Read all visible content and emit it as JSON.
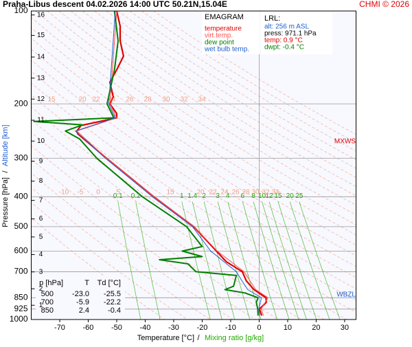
{
  "chart_data": {
    "type": "emagram",
    "title": "Praha-Libus  descent  04.02.2026 14:00 UTC  50.21N,15.04E",
    "credit": "CHMI © 2026",
    "x_label": "Temperature [°C]",
    "x_label_separator": "/",
    "x_label_2": "Mixing ratio [g/kg]",
    "y_label": "Pressure [hPa]",
    "y_label_separator": "/",
    "y_label_2": "Altitude [km]",
    "xlim": [
      -80,
      34
    ],
    "ylim": [
      1000,
      100
    ],
    "log_scale_y": true,
    "xticks": [
      -70,
      -60,
      -50,
      -40,
      -30,
      -20,
      -10,
      0,
      10,
      20,
      30
    ],
    "yticks": [
      100,
      200,
      300,
      400,
      500,
      600,
      700,
      850,
      925,
      1000
    ],
    "grid": true,
    "altitude_ticks": [
      {
        "value": 899,
        "label": "1"
      },
      {
        "value": 795,
        "label": "2"
      },
      {
        "value": 701,
        "label": "3"
      },
      {
        "value": 616,
        "label": "4"
      },
      {
        "value": 540,
        "label": "5"
      },
      {
        "value": 472,
        "label": "6"
      },
      {
        "value": 411,
        "label": "7"
      },
      {
        "value": 356,
        "label": "8"
      },
      {
        "value": 307,
        "label": "9"
      },
      {
        "value": 264,
        "label": "10"
      },
      {
        "value": 226,
        "label": "11"
      },
      {
        "value": 193,
        "label": "12"
      },
      {
        "value": 165,
        "label": "13"
      },
      {
        "value": 141,
        "label": "14"
      },
      {
        "value": 120,
        "label": "15"
      },
      {
        "value": 103,
        "label": "16"
      }
    ],
    "mixing_ratios": [
      0.1,
      0.2,
      1,
      1.4,
      2,
      3,
      4,
      6,
      8,
      10,
      12,
      15,
      20,
      25
    ],
    "mixing_ratio_color": "#22aa00",
    "adiabat_color": "#f0a080",
    "adiabat_labels_200": [
      15,
      20,
      22,
      24,
      26,
      28,
      30,
      32,
      34
    ],
    "adiabat_labels_400": [
      -10,
      -5,
      0,
      5,
      15,
      20,
      22,
      24,
      26,
      28,
      30,
      32,
      34
    ],
    "legend_title": "EMAGRAM",
    "series": [
      {
        "name": "temperature",
        "color": "#e00000",
        "width": 2.2,
        "x": [
          -50.0,
          -48.8,
          -48.8,
          -47.6,
          -50.0,
          -52.4,
          -51.2,
          -52.4,
          -50.0,
          -50.0,
          -62.5,
          -64.0,
          -63.7,
          -53.6,
          -37.0,
          -23.0,
          -15.0,
          -11.5,
          -5.9,
          -4.5,
          -1.8,
          2.4,
          2.5,
          0.1,
          0.9
        ],
        "values": [
          100,
          112,
          125,
          140,
          155,
          170,
          190,
          200,
          215,
          222,
          235,
          245,
          250,
          300,
          400,
          500,
          600,
          650,
          700,
          750,
          800,
          850,
          880,
          925,
          971
        ]
      },
      {
        "name": "virt.temp.",
        "color": "#ff5050",
        "width": 1,
        "x": [
          -50.0,
          -52.4,
          -50.0,
          -64.0,
          -53.6,
          -37.0,
          -22.9,
          -14.7,
          -5.3,
          -1.2,
          3.1,
          0.7,
          1.5
        ],
        "values": [
          100,
          200,
          222,
          245,
          300,
          400,
          500,
          600,
          700,
          800,
          850,
          925,
          971
        ]
      },
      {
        "name": "dew point",
        "color": "#008000",
        "width": 2,
        "x": [
          -50.8,
          -49.5,
          -50.8,
          -53.4,
          -51.0,
          -79.0,
          -62.0,
          -68.0,
          -63.0,
          -57.0,
          -41.0,
          -25.5,
          -20.0,
          -27.0,
          -20.0,
          -35.0,
          -25.0,
          -22.2,
          -8.0,
          -9.0,
          -12.0,
          -5.0,
          -0.4,
          -1.0,
          -0.5,
          -0.4
        ],
        "values": [
          100,
          125,
          155,
          200,
          222,
          228,
          234,
          245,
          260,
          300,
          400,
          500,
          580,
          600,
          625,
          640,
          660,
          700,
          720,
          780,
          800,
          820,
          850,
          880,
          925,
          971
        ]
      },
      {
        "name": "wet bulb temp.",
        "color": "#2060d0",
        "width": 1,
        "x": [
          -50.5,
          -52.8,
          -50.5,
          -64.5,
          -54.0,
          -37.5,
          -23.4,
          -17.0,
          -8.0,
          -6.0,
          -4.0,
          0.8,
          -0.1,
          0.2
        ],
        "values": [
          100,
          200,
          222,
          245,
          300,
          400,
          500,
          600,
          700,
          750,
          800,
          850,
          925,
          971
        ]
      }
    ],
    "lrl": {
      "title": "LRL:",
      "alt": "alt: 256 m ASL",
      "press": "press: 971.1 hPa",
      "temp": "temp: 0.9 °C",
      "dwpt": "dwpt: -0.4 °C"
    },
    "annotations": [
      {
        "text": "MXWS",
        "color": "#e00000"
      },
      {
        "text": "WBZL",
        "color": "#2060d0"
      }
    ],
    "table": {
      "header": [
        "p [hPa]",
        "T",
        "Td [°C]"
      ],
      "rows": [
        [
          "500",
          "-23.0",
          "-25.5"
        ],
        [
          "700",
          "-5.9",
          "-22.2"
        ],
        [
          "850",
          "2.4",
          "-0.4"
        ]
      ]
    }
  }
}
